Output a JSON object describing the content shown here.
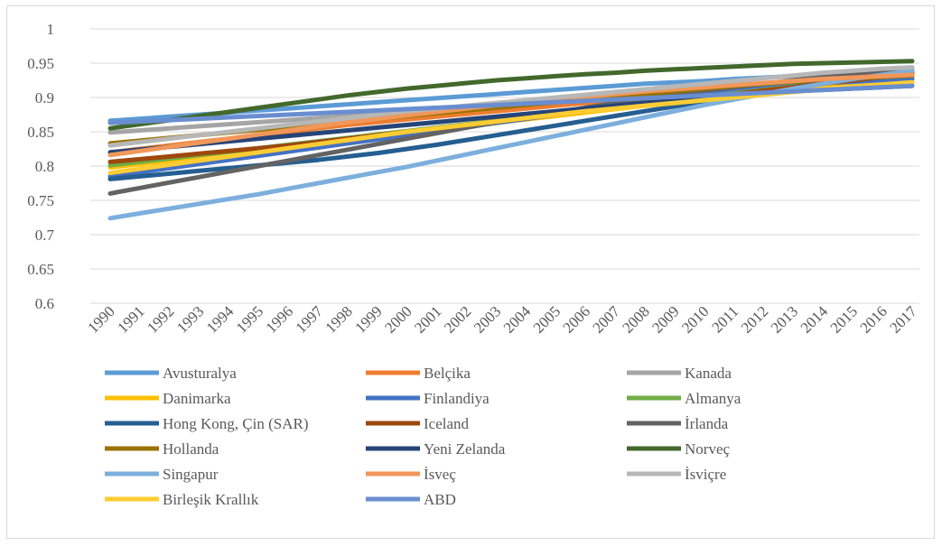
{
  "chart_data": {
    "type": "line",
    "title": "",
    "xlabel": "",
    "ylabel": "",
    "ylim": [
      0.6,
      1.0
    ],
    "yticks": [
      "0.6",
      "0.65",
      "0.7",
      "0.75",
      "0.8",
      "0.85",
      "0.9",
      "0.95",
      "1"
    ],
    "grid": true,
    "legend_position": "bottom",
    "categories": [
      "1990",
      "1991",
      "1992",
      "1993",
      "1994",
      "1995",
      "1996",
      "1997",
      "1998",
      "1999",
      "2000",
      "2001",
      "2002",
      "2003",
      "2004",
      "2005",
      "2006",
      "2007",
      "2008",
      "2009",
      "2010",
      "2011",
      "2012",
      "2013",
      "2014",
      "2015",
      "2016",
      "2017"
    ],
    "series": [
      {
        "name": "Avusturalya",
        "color": "#5b9bd5",
        "values": [
          0.866,
          0.869,
          0.872,
          0.875,
          0.878,
          0.881,
          0.884,
          0.887,
          0.89,
          0.893,
          0.896,
          0.899,
          0.902,
          0.905,
          0.908,
          0.911,
          0.914,
          0.917,
          0.92,
          0.922,
          0.924,
          0.927,
          0.929,
          0.931,
          0.933,
          0.935,
          0.937,
          0.939
        ]
      },
      {
        "name": "Belçika",
        "color": "#ed7d31",
        "values": [
          0.82,
          0.825,
          0.83,
          0.835,
          0.84,
          0.845,
          0.85,
          0.855,
          0.86,
          0.864,
          0.868,
          0.872,
          0.876,
          0.88,
          0.884,
          0.888,
          0.892,
          0.896,
          0.899,
          0.902,
          0.905,
          0.908,
          0.911,
          0.914,
          0.916,
          0.918,
          0.92,
          0.922
        ]
      },
      {
        "name": "Kanada",
        "color": "#a5a5a5",
        "values": [
          0.849,
          0.852,
          0.855,
          0.858,
          0.861,
          0.864,
          0.867,
          0.87,
          0.873,
          0.876,
          0.879,
          0.882,
          0.885,
          0.888,
          0.891,
          0.894,
          0.897,
          0.9,
          0.903,
          0.905,
          0.907,
          0.909,
          0.911,
          0.913,
          0.915,
          0.917,
          0.919,
          0.921
        ]
      },
      {
        "name": "Danimarka",
        "color": "#ffc000",
        "values": [
          0.798,
          0.803,
          0.808,
          0.813,
          0.818,
          0.823,
          0.828,
          0.833,
          0.838,
          0.843,
          0.848,
          0.853,
          0.858,
          0.863,
          0.868,
          0.873,
          0.878,
          0.883,
          0.888,
          0.893,
          0.898,
          0.903,
          0.908,
          0.913,
          0.918,
          0.923,
          0.926,
          0.929
        ]
      },
      {
        "name": "Finlandiya",
        "color": "#4472c4",
        "values": [
          0.785,
          0.791,
          0.797,
          0.803,
          0.809,
          0.815,
          0.821,
          0.827,
          0.833,
          0.839,
          0.845,
          0.851,
          0.857,
          0.863,
          0.869,
          0.875,
          0.881,
          0.887,
          0.893,
          0.899,
          0.904,
          0.909,
          0.914,
          0.918,
          0.921,
          0.923,
          0.925,
          0.927
        ]
      },
      {
        "name": "Almanya",
        "color": "#70ad47",
        "values": [
          0.801,
          0.806,
          0.811,
          0.816,
          0.821,
          0.826,
          0.831,
          0.836,
          0.841,
          0.846,
          0.851,
          0.856,
          0.861,
          0.866,
          0.871,
          0.876,
          0.881,
          0.886,
          0.891,
          0.896,
          0.901,
          0.906,
          0.911,
          0.916,
          0.921,
          0.926,
          0.931,
          0.936
        ]
      },
      {
        "name": "Hong Kong, Çin (SAR)",
        "color": "#255e91",
        "values": [
          0.781,
          0.785,
          0.789,
          0.793,
          0.797,
          0.801,
          0.805,
          0.809,
          0.814,
          0.819,
          0.825,
          0.831,
          0.838,
          0.845,
          0.852,
          0.859,
          0.866,
          0.873,
          0.88,
          0.887,
          0.894,
          0.901,
          0.908,
          0.915,
          0.922,
          0.929,
          0.934,
          0.939
        ]
      },
      {
        "name": "Iceland",
        "color": "#9e480e",
        "values": [
          0.806,
          0.81,
          0.814,
          0.818,
          0.822,
          0.826,
          0.83,
          0.835,
          0.84,
          0.845,
          0.85,
          0.855,
          0.86,
          0.865,
          0.87,
          0.875,
          0.88,
          0.885,
          0.89,
          0.895,
          0.9,
          0.905,
          0.91,
          0.915,
          0.92,
          0.925,
          0.93,
          0.935
        ]
      },
      {
        "name": "İrlanda",
        "color": "#636363",
        "values": [
          0.76,
          0.768,
          0.776,
          0.784,
          0.792,
          0.8,
          0.808,
          0.816,
          0.824,
          0.832,
          0.84,
          0.848,
          0.856,
          0.864,
          0.871,
          0.878,
          0.885,
          0.892,
          0.898,
          0.904,
          0.91,
          0.915,
          0.92,
          0.925,
          0.93,
          0.934,
          0.937,
          0.94
        ]
      },
      {
        "name": "Hollanda",
        "color": "#997300",
        "values": [
          0.833,
          0.837,
          0.841,
          0.845,
          0.849,
          0.853,
          0.857,
          0.861,
          0.865,
          0.869,
          0.873,
          0.877,
          0.881,
          0.885,
          0.889,
          0.893,
          0.897,
          0.901,
          0.905,
          0.909,
          0.913,
          0.917,
          0.92,
          0.923,
          0.926,
          0.928,
          0.93,
          0.932
        ]
      },
      {
        "name": "Yeni Zelanda",
        "color": "#264478",
        "values": [
          0.82,
          0.824,
          0.828,
          0.832,
          0.836,
          0.84,
          0.844,
          0.848,
          0.852,
          0.856,
          0.86,
          0.864,
          0.868,
          0.872,
          0.876,
          0.88,
          0.884,
          0.888,
          0.892,
          0.896,
          0.9,
          0.903,
          0.906,
          0.909,
          0.911,
          0.913,
          0.915,
          0.917
        ]
      },
      {
        "name": "Norveç",
        "color": "#43682b",
        "values": [
          0.855,
          0.861,
          0.867,
          0.873,
          0.879,
          0.885,
          0.891,
          0.897,
          0.903,
          0.908,
          0.913,
          0.917,
          0.921,
          0.925,
          0.928,
          0.931,
          0.934,
          0.936,
          0.939,
          0.941,
          0.943,
          0.945,
          0.947,
          0.949,
          0.95,
          0.951,
          0.952,
          0.953
        ]
      },
      {
        "name": "Singapur",
        "color": "#7cafdd",
        "values": [
          0.724,
          0.731,
          0.738,
          0.745,
          0.752,
          0.759,
          0.767,
          0.775,
          0.783,
          0.791,
          0.799,
          0.808,
          0.817,
          0.826,
          0.835,
          0.844,
          0.853,
          0.862,
          0.871,
          0.88,
          0.889,
          0.897,
          0.905,
          0.913,
          0.92,
          0.927,
          0.933,
          0.939
        ]
      },
      {
        "name": "İsveç",
        "color": "#f1975a",
        "values": [
          0.816,
          0.822,
          0.828,
          0.834,
          0.84,
          0.846,
          0.852,
          0.858,
          0.864,
          0.869,
          0.874,
          0.879,
          0.884,
          0.889,
          0.893,
          0.897,
          0.901,
          0.905,
          0.909,
          0.912,
          0.915,
          0.918,
          0.921,
          0.924,
          0.927,
          0.929,
          0.931,
          0.933
        ]
      },
      {
        "name": "İsviçre",
        "color": "#b7b7b7",
        "values": [
          0.83,
          0.835,
          0.84,
          0.845,
          0.85,
          0.855,
          0.86,
          0.865,
          0.87,
          0.875,
          0.88,
          0.884,
          0.888,
          0.892,
          0.896,
          0.9,
          0.904,
          0.908,
          0.912,
          0.916,
          0.92,
          0.924,
          0.928,
          0.932,
          0.936,
          0.939,
          0.942,
          0.944
        ]
      },
      {
        "name": "Birleşik Krallık",
        "color": "#ffcd33",
        "values": [
          0.79,
          0.796,
          0.802,
          0.808,
          0.814,
          0.82,
          0.826,
          0.832,
          0.838,
          0.844,
          0.85,
          0.855,
          0.86,
          0.865,
          0.87,
          0.875,
          0.88,
          0.884,
          0.888,
          0.892,
          0.896,
          0.9,
          0.904,
          0.908,
          0.912,
          0.916,
          0.919,
          0.922
        ]
      },
      {
        "name": "ABD",
        "color": "#698ed0",
        "values": [
          0.863,
          0.865,
          0.867,
          0.869,
          0.871,
          0.873,
          0.875,
          0.877,
          0.879,
          0.881,
          0.883,
          0.885,
          0.887,
          0.889,
          0.891,
          0.893,
          0.895,
          0.897,
          0.899,
          0.901,
          0.903,
          0.905,
          0.907,
          0.909,
          0.911,
          0.913,
          0.915,
          0.917
        ]
      }
    ]
  }
}
